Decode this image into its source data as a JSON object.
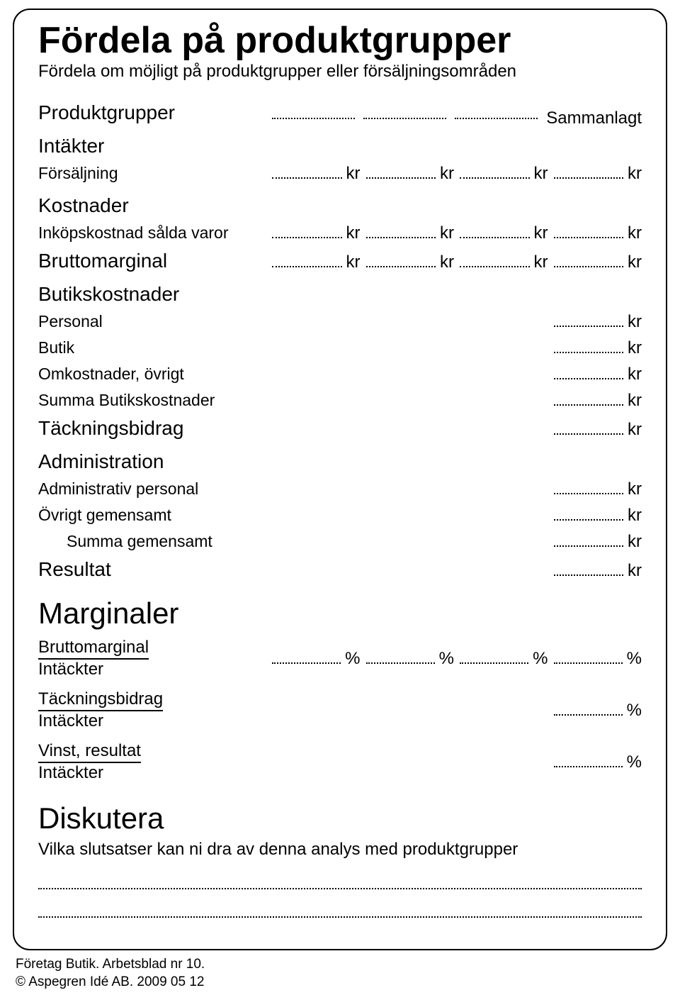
{
  "title": "Fördela på produktgrupper",
  "subtitle": "Fördela om möjligt på produktgrupper eller försäljningsområden",
  "unit_currency": "kr",
  "unit_percent": "%",
  "header_row": {
    "label": "Produktgrupper",
    "tail": "Sammanlagt"
  },
  "sections": {
    "intakter": {
      "heading": "Intäkter",
      "rows": {
        "forsaljning": "Försäljning"
      }
    },
    "kostnader": {
      "heading": "Kostnader",
      "rows": {
        "inkop": "Inköpskostnad sålda varor",
        "brutto": "Bruttomarginal"
      }
    },
    "butikskostnader": {
      "heading": "Butikskostnader",
      "rows": {
        "personal": "Personal",
        "butik": "Butik",
        "omkost": "Omkostnader, övrigt",
        "summa": "Summa Butikskostnader",
        "tackning": "Täckningsbidrag"
      }
    },
    "administration": {
      "heading": "Administration",
      "rows": {
        "adminpers": "Administrativ personal",
        "ovrigt": "Övrigt gemensamt",
        "summa": "Summa gemensamt",
        "resultat": "Resultat"
      }
    }
  },
  "marginaler": {
    "heading": "Marginaler",
    "items": {
      "brutto": {
        "num": "Bruttomarginal",
        "den": "Intäckter"
      },
      "tackning": {
        "num": "Täckningsbidrag",
        "den": "Intäckter"
      },
      "vinst": {
        "num": "Vinst, resultat",
        "den": "Intäckter"
      }
    }
  },
  "diskutera": {
    "heading": "Diskutera",
    "prompt": "Vilka slutsatser kan ni dra av denna analys med produktgrupper"
  },
  "footer": {
    "line1": "Företag Butik. Arbetsblad nr 10.",
    "line2": "© Aspegren Idé AB. 2009 05 12"
  },
  "colors": {
    "text": "#000000",
    "background": "#ffffff",
    "border": "#000000"
  }
}
